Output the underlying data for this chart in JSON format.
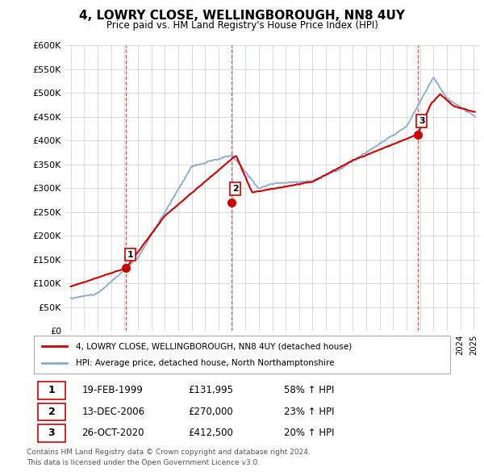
{
  "title": "4, LOWRY CLOSE, WELLINGBOROUGH, NN8 4UY",
  "subtitle": "Price paid vs. HM Land Registry's House Price Index (HPI)",
  "legend_line1": "4, LOWRY CLOSE, WELLINGBOROUGH, NN8 4UY (detached house)",
  "legend_line2": "HPI: Average price, detached house, North Northamptonshire",
  "transactions": [
    {
      "num": 1,
      "date": "19-FEB-1999",
      "price": 131995,
      "pct": "58% ↑ HPI",
      "x_year": 1999.12
    },
    {
      "num": 2,
      "date": "13-DEC-2006",
      "price": 270000,
      "pct": "23% ↑ HPI",
      "x_year": 2006.95
    },
    {
      "num": 3,
      "date": "26-OCT-2020",
      "price": 412500,
      "pct": "20% ↑ HPI",
      "x_year": 2020.82
    }
  ],
  "footnote1": "Contains HM Land Registry data © Crown copyright and database right 2024.",
  "footnote2": "This data is licensed under the Open Government Licence v3.0.",
  "price_color": "#cc0000",
  "hpi_color": "#88aacc",
  "ylim": [
    0,
    600000
  ],
  "xlim_start": 1994.6,
  "xlim_end": 2025.4,
  "background_color": "#ffffff",
  "grid_color": "#cccccc"
}
